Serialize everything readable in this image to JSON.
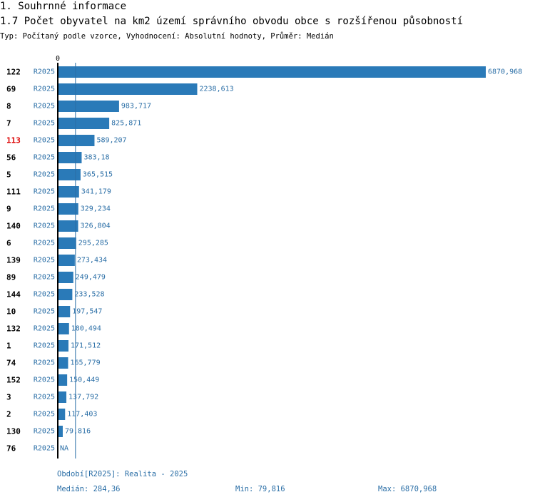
{
  "header": {
    "section": "1. Souhrnné informace",
    "title": "1.7 Počet obyvatel na km2 území správního obvodu obce s rozšířenou působností",
    "subtitle": "Typ: Počítaný podle vzorce, Vyhodnocení: Absolutní hodnoty, Průměr: Medián"
  },
  "colors": {
    "bar": "#2a7ab8",
    "value_text": "#2a6ea6",
    "highlight_label": "#dd0000",
    "axis": "#000000",
    "median_line": "#2a6ea6"
  },
  "chart_data": {
    "type": "bar",
    "orientation": "horizontal",
    "title": "1.7 Počet obyvatel na km2 území správního obvodu obce s rozšířenou působností",
    "axis_zero_label": "0",
    "xlim": [
      0,
      6870.968
    ],
    "median": 284.36,
    "highlight_category": "113",
    "series": [
      {
        "name": "R2025",
        "rows": [
          {
            "category": "122",
            "value": 6870.968,
            "label": "6870,968"
          },
          {
            "category": "69",
            "value": 2238.613,
            "label": "2238,613"
          },
          {
            "category": "8",
            "value": 983.717,
            "label": "983,717"
          },
          {
            "category": "7",
            "value": 825.871,
            "label": "825,871"
          },
          {
            "category": "113",
            "value": 589.207,
            "label": "589,207"
          },
          {
            "category": "56",
            "value": 383.18,
            "label": "383,18"
          },
          {
            "category": "5",
            "value": 365.515,
            "label": "365,515"
          },
          {
            "category": "111",
            "value": 341.179,
            "label": "341,179"
          },
          {
            "category": "9",
            "value": 329.234,
            "label": "329,234"
          },
          {
            "category": "140",
            "value": 326.804,
            "label": "326,804"
          },
          {
            "category": "6",
            "value": 295.285,
            "label": "295,285"
          },
          {
            "category": "139",
            "value": 273.434,
            "label": "273,434"
          },
          {
            "category": "89",
            "value": 249.479,
            "label": "249,479"
          },
          {
            "category": "144",
            "value": 233.528,
            "label": "233,528"
          },
          {
            "category": "10",
            "value": 197.547,
            "label": "197,547"
          },
          {
            "category": "132",
            "value": 180.494,
            "label": "180,494"
          },
          {
            "category": "1",
            "value": 171.512,
            "label": "171,512"
          },
          {
            "category": "74",
            "value": 165.779,
            "label": "165,779"
          },
          {
            "category": "152",
            "value": 150.449,
            "label": "150,449"
          },
          {
            "category": "3",
            "value": 137.792,
            "label": "137,792"
          },
          {
            "category": "2",
            "value": 117.403,
            "label": "117,403"
          },
          {
            "category": "130",
            "value": 79.816,
            "label": "79,816"
          },
          {
            "category": "76",
            "value": null,
            "label": "NA"
          }
        ]
      }
    ]
  },
  "footer": {
    "period": "Období[R2025]: Realita - 2025",
    "median": "Medián: 284,36",
    "min": "Min: 79,816",
    "max": "Max: 6870,968"
  }
}
